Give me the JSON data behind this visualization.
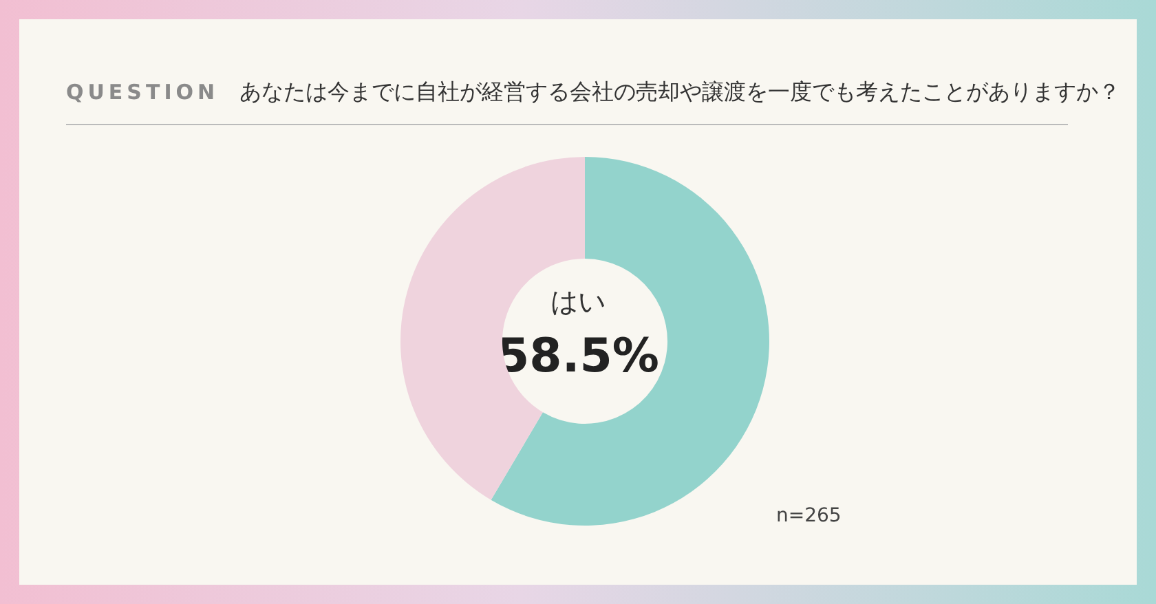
{
  "chart_data": {
    "type": "donut",
    "title": "あなたは今までに自社が経営する会社の売却や譲渡を一度でも考えたことがありますか？",
    "categories": [
      "はい",
      null
    ],
    "values": [
      58.5,
      41.5
    ],
    "colors": [
      "#93d3cc",
      "#efd3dd"
    ],
    "value_labels": [
      "58.5%",
      null
    ],
    "annotations": [
      "QUESTION",
      "n=265"
    ],
    "legend": false
  }
}
